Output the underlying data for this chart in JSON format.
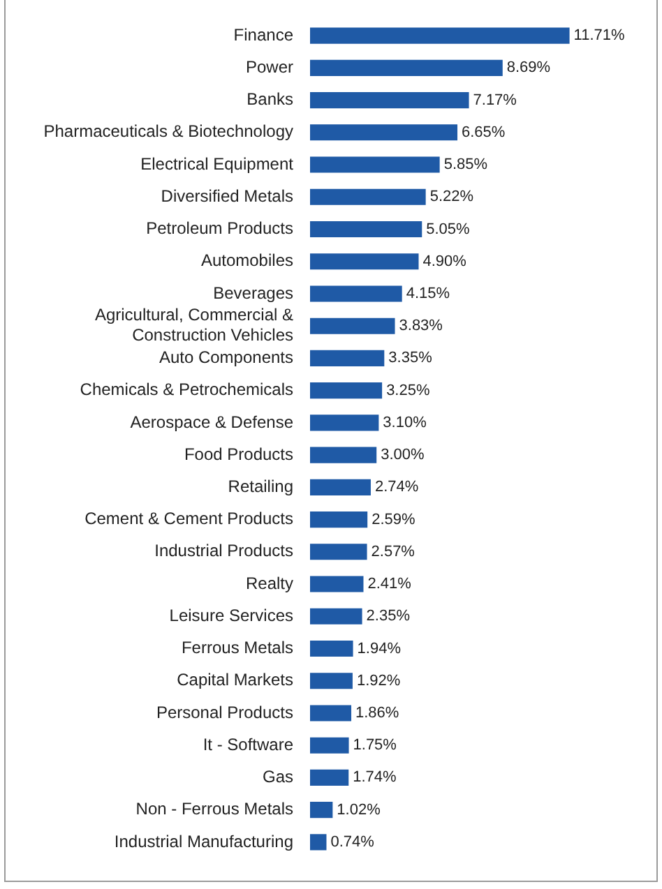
{
  "chart_data": {
    "type": "bar",
    "orientation": "horizontal",
    "color": "#1f5aa6",
    "categories": [
      "Finance",
      "Power",
      "Banks",
      "Pharmaceuticals & Biotechnology",
      "Electrical Equipment",
      "Diversified Metals",
      "Petroleum Products",
      "Automobiles",
      "Beverages",
      "Agricultural, Commercial & Construction Vehicles",
      "Auto Components",
      "Chemicals & Petrochemicals",
      "Aerospace & Defense",
      "Food Products",
      "Retailing",
      "Cement & Cement Products",
      "Industrial Products",
      "Realty",
      "Leisure Services",
      "Ferrous Metals",
      "Capital Markets",
      "Personal Products",
      "It - Software",
      "Gas",
      "Non - Ferrous Metals",
      "Industrial Manufacturing"
    ],
    "values": [
      11.71,
      8.69,
      7.17,
      6.65,
      5.85,
      5.22,
      5.05,
      4.9,
      4.15,
      3.83,
      3.35,
      3.25,
      3.1,
      3.0,
      2.74,
      2.59,
      2.57,
      2.41,
      2.35,
      1.94,
      1.92,
      1.86,
      1.75,
      1.74,
      1.02,
      0.74
    ],
    "value_labels": [
      "11.71%",
      "8.69%",
      "7.17%",
      "6.65%",
      "5.85%",
      "5.22%",
      "5.05%",
      "4.90%",
      "4.15%",
      "3.83%",
      "3.35%",
      "3.25%",
      "3.10%",
      "3.00%",
      "2.74%",
      "2.59%",
      "2.57%",
      "2.41%",
      "2.35%",
      "1.94%",
      "1.92%",
      "1.86%",
      "1.75%",
      "1.74%",
      "1.02%",
      "0.74%"
    ],
    "legend": false
  }
}
